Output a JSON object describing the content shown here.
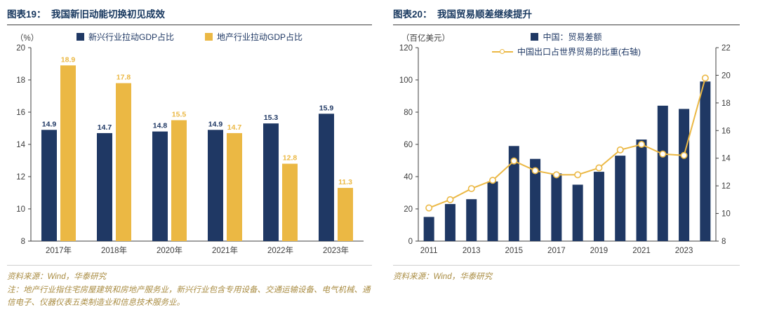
{
  "figures": [
    {
      "title": "图表19：  我国新旧动能切换初见成效",
      "unit": "（%）",
      "source": "资料来源：Wind，华泰研究",
      "note": "注：地产行业指住宅房屋建筑和房地产服务业，新兴行业包含专用设备、交通运输设备、电气机械、通信电子、仪器仪表五类制造业和信息技术服务业。"
    },
    {
      "title": "图表20：  我国贸易顺差继续提升",
      "unit": "（百亿美元）",
      "source": "资料来源：Wind，华泰研究"
    }
  ],
  "colors": {
    "navy": "#1F3864",
    "gold": "#EBB844",
    "title_text": "#17375E",
    "footnote_text": "#A98C42",
    "axis": "#404040"
  },
  "chart_data": [
    {
      "type": "bar",
      "title": "我国新旧动能切换初见成效",
      "categories": [
        "2017年",
        "2018年",
        "2020年",
        "2021年",
        "2022年",
        "2023年"
      ],
      "series": [
        {
          "name": "新兴行业拉动GDP占比",
          "color": "#1F3864",
          "values": [
            14.9,
            14.7,
            14.8,
            14.9,
            15.3,
            15.9
          ]
        },
        {
          "name": "地产行业拉动GDP占比",
          "color": "#EBB844",
          "values": [
            18.9,
            17.8,
            15.5,
            14.7,
            12.8,
            11.3
          ]
        }
      ],
      "ylabel": "%",
      "ylim": [
        8,
        20
      ],
      "ytick_step": 2,
      "grid": false,
      "legend_position": "top",
      "data_labels": true
    },
    {
      "type": "combo",
      "title": "我国贸易顺差继续提升",
      "x": [
        2011,
        2012,
        2013,
        2014,
        2015,
        2016,
        2017,
        2018,
        2019,
        2020,
        2021,
        2022,
        2023,
        2024
      ],
      "xtick_labels": [
        "2011",
        "2013",
        "2015",
        "2017",
        "2019",
        "2021",
        "2023"
      ],
      "xtick_every": 2,
      "bar_series": {
        "name": "中国：贸易差额",
        "axis": "left",
        "color": "#1F3864",
        "values": [
          15,
          23,
          26,
          37,
          59,
          51,
          42,
          35,
          43,
          53,
          63,
          84,
          82,
          99
        ]
      },
      "line_series": {
        "name": "中国出口占世界贸易的比重(右轴)",
        "axis": "right",
        "color": "#EBB844",
        "values": [
          10.4,
          11.0,
          11.8,
          12.4,
          13.8,
          13.1,
          12.8,
          12.8,
          13.3,
          14.6,
          15.0,
          14.3,
          14.2,
          19.8
        ]
      },
      "ylabel_left": "百亿美元",
      "ylim_left": [
        0,
        120
      ],
      "ytick_step_left": 20,
      "ylim_right": [
        8,
        22
      ],
      "ytick_step_right": 2,
      "grid": false,
      "legend_position": "top"
    }
  ]
}
